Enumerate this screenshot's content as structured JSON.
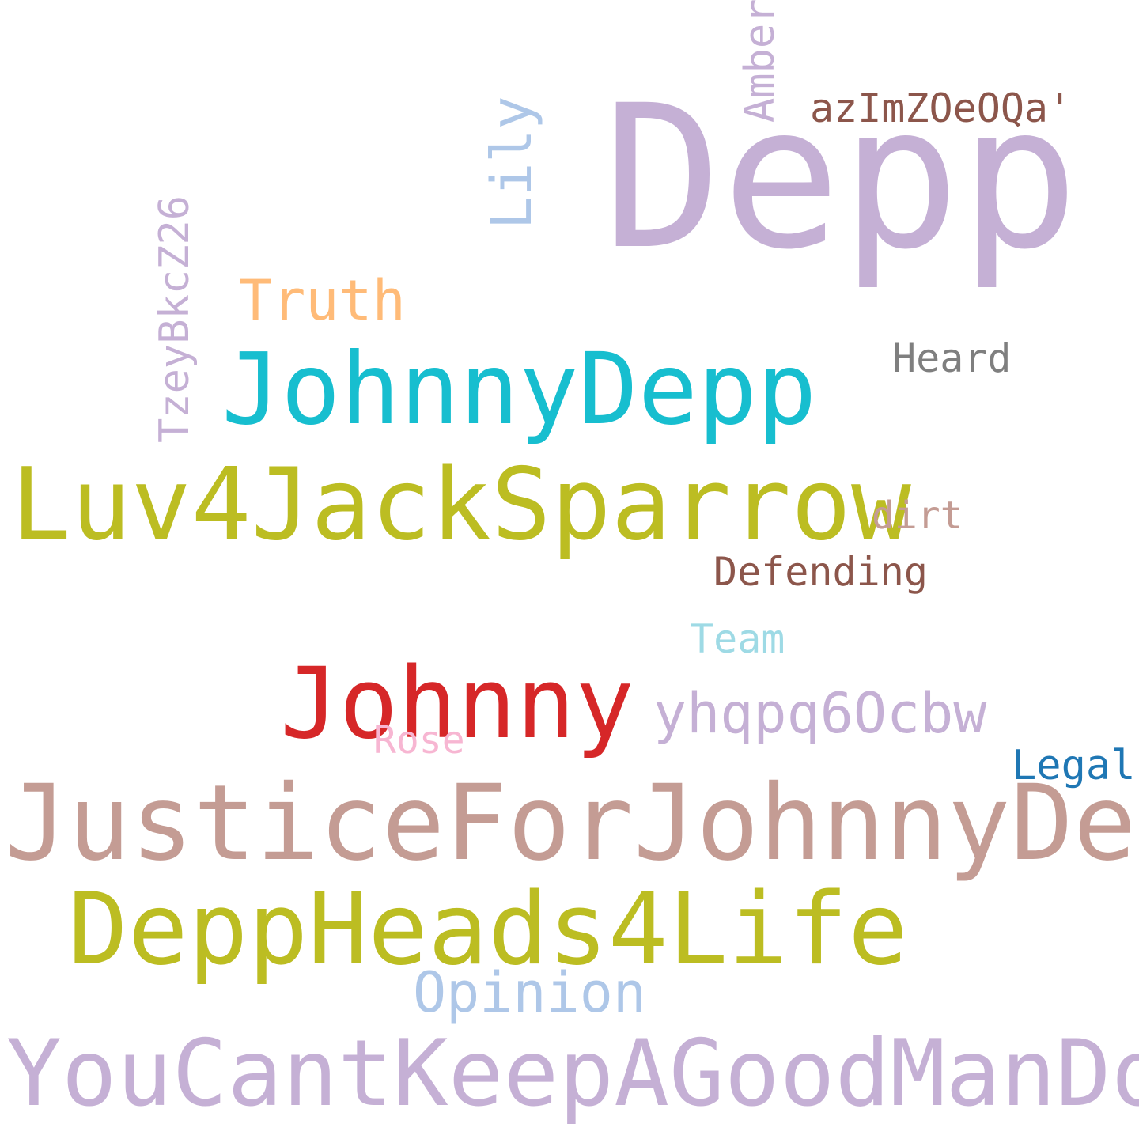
{
  "wordcloud": {
    "words": {
      "depp": {
        "text": "Depp",
        "color": "#c5b0d5"
      },
      "lily": {
        "text": "Lily",
        "color": "#aec7e8"
      },
      "amber": {
        "text": "Amber",
        "color": "#c5b0d5"
      },
      "az": {
        "text": "azImZOeOQa'",
        "color": "#8c564b"
      },
      "tzey": {
        "text": "TzeyBkcZ26",
        "color": "#c5b0d5"
      },
      "truth": {
        "text": "Truth",
        "color": "#ffbb78"
      },
      "heard": {
        "text": "Heard",
        "color": "#7f7f7f"
      },
      "johnnydepp": {
        "text": "JohnnyDepp",
        "color": "#17becf"
      },
      "luv": {
        "text": "Luv4JackSparrow",
        "color": "#bcbd22"
      },
      "dirt": {
        "text": "dirt",
        "color": "#c49c94"
      },
      "defending": {
        "text": "Defending",
        "color": "#8c564b"
      },
      "team": {
        "text": "Team",
        "color": "#9edae5"
      },
      "johnny": {
        "text": "Johnny",
        "color": "#d62728"
      },
      "yhq": {
        "text": "yhqpq6Ocbw",
        "color": "#c5b0d5"
      },
      "rose": {
        "text": "Rose",
        "color": "#f7b6d2"
      },
      "legal": {
        "text": "Legal",
        "color": "#1f77b4"
      },
      "justice": {
        "text": "JusticeForJohnnyDepp",
        "color": "#c49c94"
      },
      "deppheads": {
        "text": "DeppHeads4Life",
        "color": "#bcbd22"
      },
      "opinion": {
        "text": "Opinion",
        "color": "#aec7e8"
      },
      "youcant": {
        "text": "YouCantKeepAGoodManDown",
        "color": "#c5b0d5"
      }
    }
  }
}
